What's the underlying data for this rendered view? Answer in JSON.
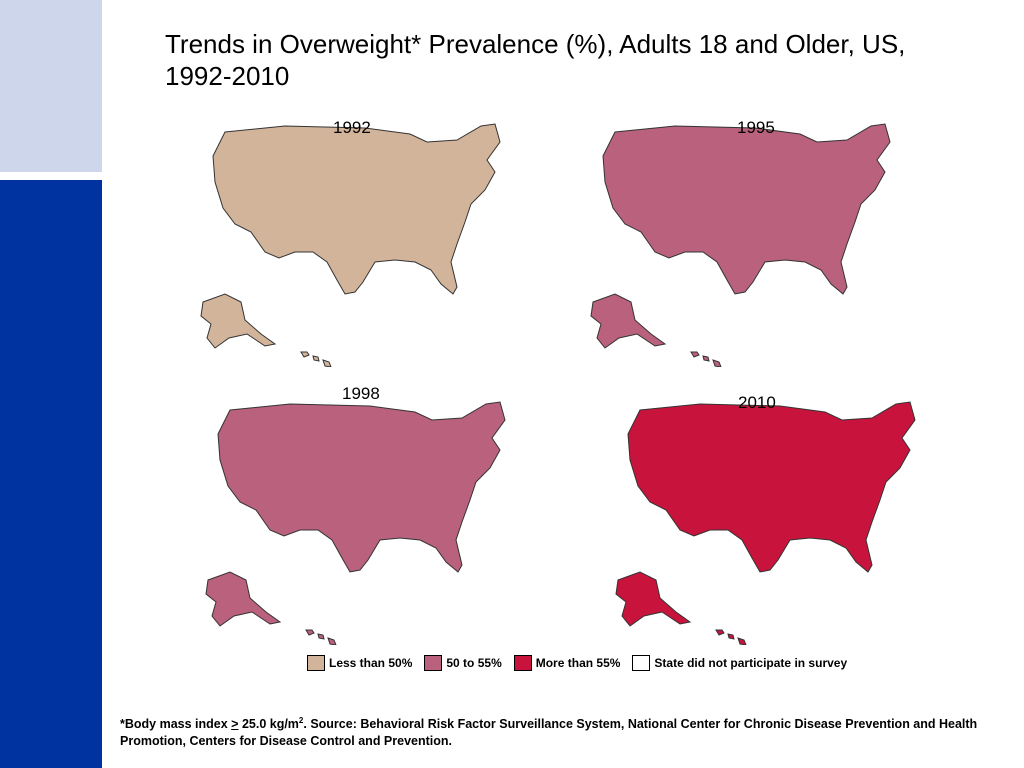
{
  "title": "Trends in Overweight* Prevalence (%), Adults 18 and Older, US, 1992-2010",
  "colors": {
    "less_than_50": "#d2b49b",
    "50_to_55": "#b9617d",
    "more_than_55": "#c8143c",
    "did_not_participate": "#ffffff",
    "sidebar_light": "#cdd6ea",
    "sidebar_dark": "#0033a0"
  },
  "maps": [
    {
      "year": "1992",
      "predominant": "less_than_50"
    },
    {
      "year": "1995",
      "predominant": "50_to_55"
    },
    {
      "year": "1998",
      "predominant": "50_to_55"
    },
    {
      "year": "2010",
      "predominant": "more_than_55"
    }
  ],
  "legend": [
    {
      "label": "Less than 50%",
      "color_key": "less_than_50"
    },
    {
      "label": "50 to 55%",
      "color_key": "50_to_55"
    },
    {
      "label": "More than 55%",
      "color_key": "more_than_55"
    },
    {
      "label": "State did not participate in survey",
      "color_key": "did_not_participate"
    }
  ],
  "footnote": {
    "prefix": "*Body mass index ",
    "gte": ">",
    "value": " 25.0 kg/m",
    "sup": "2",
    "rest": ". Source: Behavioral Risk Factor Surveillance System, National Center for Chronic Disease Prevention and Health Promotion, Centers for Disease Control and Prevention."
  }
}
